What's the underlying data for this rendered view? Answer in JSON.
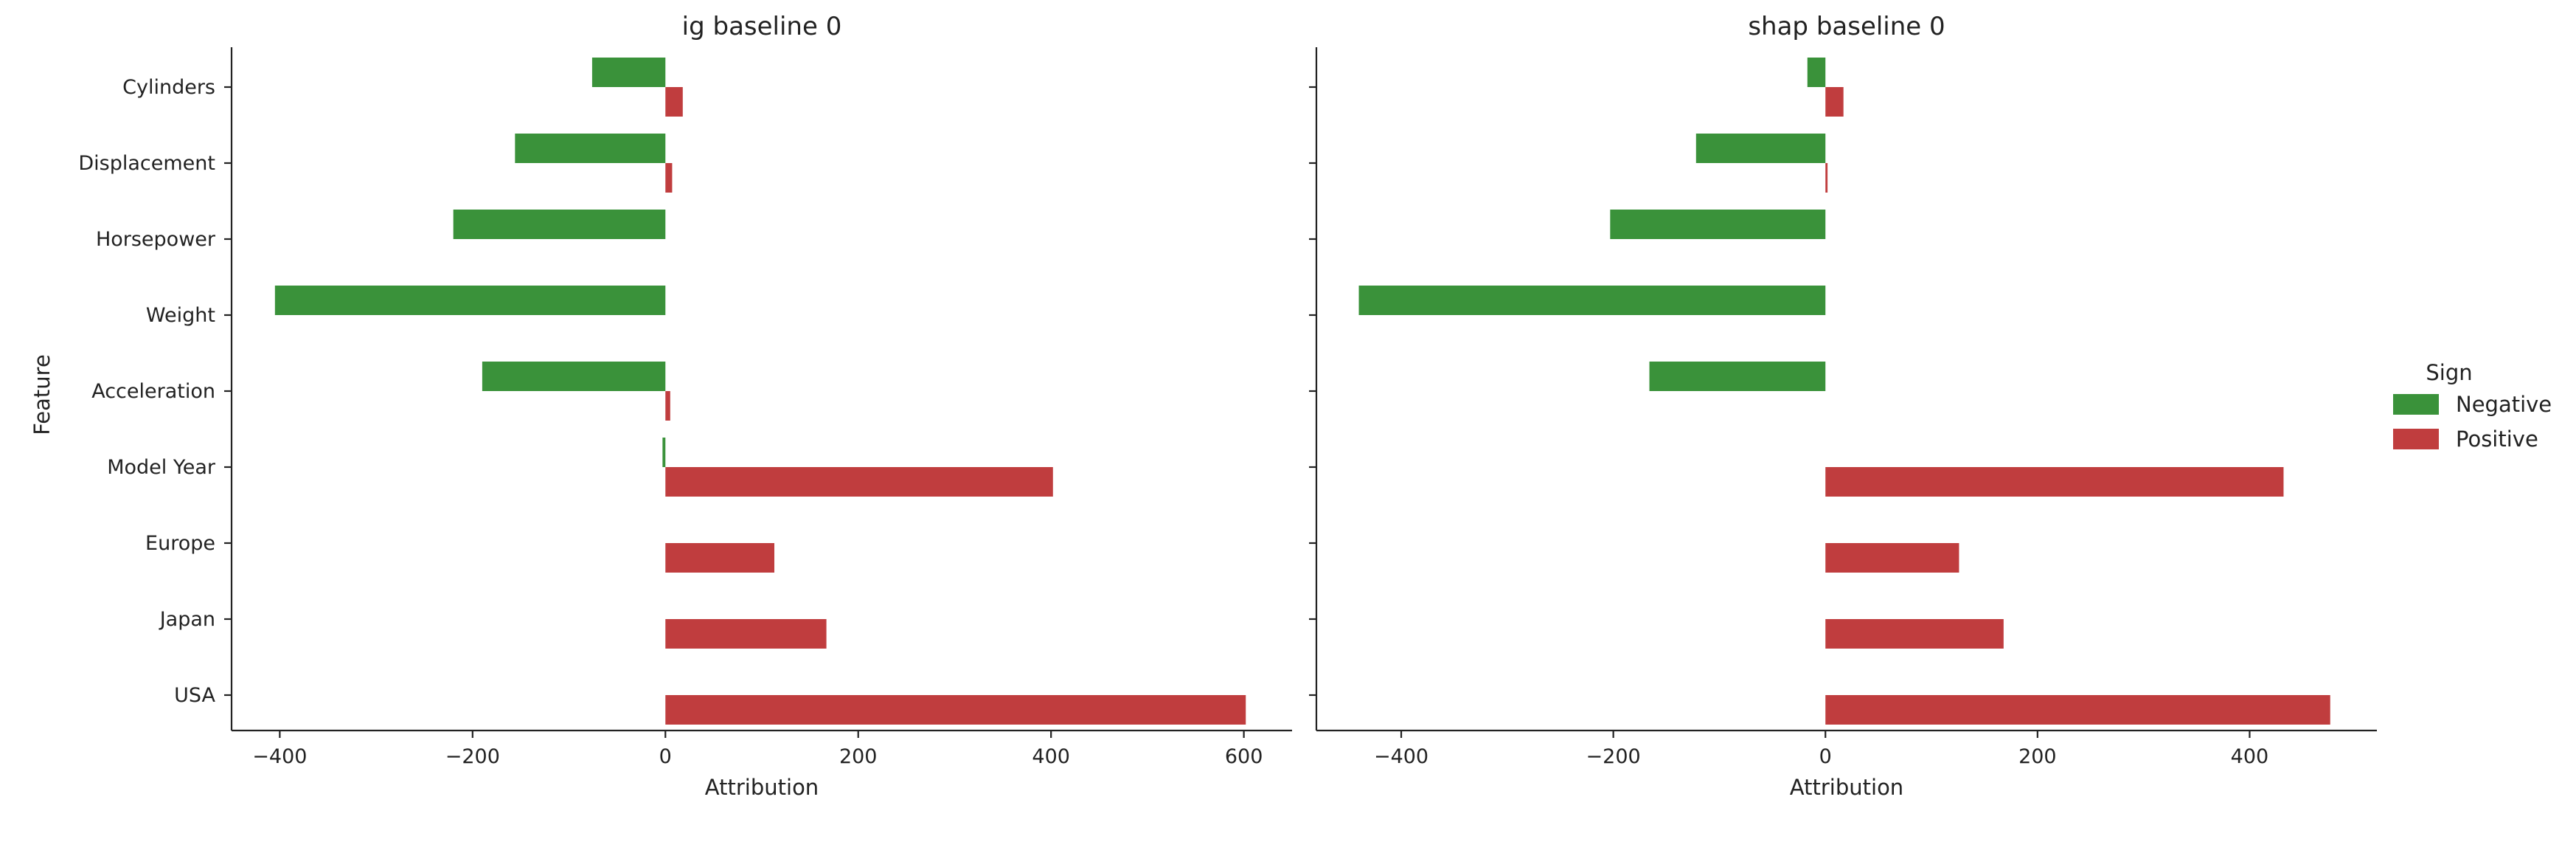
{
  "chart_data": [
    {
      "type": "bar",
      "orientation": "horizontal",
      "title": "ig baseline 0",
      "xlabel": "Attribution",
      "ylabel": "Feature",
      "xlim": [
        -450,
        650
      ],
      "xticks": [
        -400,
        -200,
        0,
        200,
        400,
        600
      ],
      "categories": [
        "Cylinders",
        "Displacement",
        "Horsepower",
        "Weight",
        "Acceleration",
        "Model Year",
        "Europe",
        "Japan",
        "USA"
      ],
      "series": [
        {
          "name": "Negative",
          "values": [
            -76,
            -156,
            -220,
            -405,
            -190,
            -3,
            0,
            0,
            0
          ]
        },
        {
          "name": "Positive",
          "values": [
            18,
            7,
            0,
            0,
            5,
            402,
            113,
            167,
            602
          ]
        }
      ]
    },
    {
      "type": "bar",
      "orientation": "horizontal",
      "title": "shap baseline 0",
      "xlabel": "Attribution",
      "ylabel": "",
      "xlim": [
        -480,
        520
      ],
      "xticks": [
        -400,
        -200,
        0,
        200,
        400
      ],
      "categories": [
        "Cylinders",
        "Displacement",
        "Horsepower",
        "Weight",
        "Acceleration",
        "Model Year",
        "Europe",
        "Japan",
        "USA"
      ],
      "series": [
        {
          "name": "Negative",
          "values": [
            -17,
            -122,
            -203,
            -440,
            -166,
            0,
            0,
            0,
            0
          ]
        },
        {
          "name": "Positive",
          "values": [
            17,
            2,
            0,
            0,
            0,
            432,
            126,
            168,
            476
          ]
        }
      ]
    }
  ],
  "legend": {
    "title": "Sign",
    "placement": "right",
    "items": [
      {
        "label": "Negative",
        "color": "#3a923a"
      },
      {
        "label": "Positive",
        "color": "#c03d3e"
      }
    ]
  },
  "colors": {
    "negative": "#3a923a",
    "positive": "#c03d3e"
  }
}
